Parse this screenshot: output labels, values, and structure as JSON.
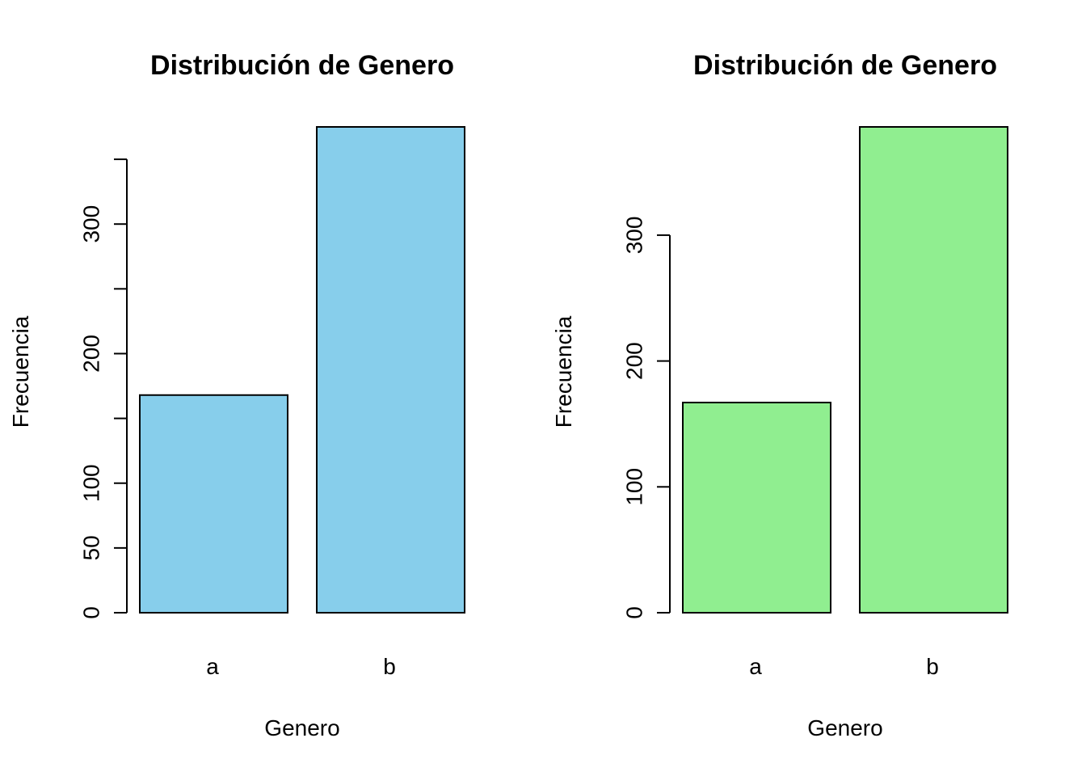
{
  "chart_data": [
    {
      "type": "bar",
      "title": "Distribución de Genero",
      "xlabel": "Genero",
      "ylabel": "Frecuencia",
      "categories": [
        "a",
        "b"
      ],
      "values": [
        168,
        375
      ],
      "ylim": [
        0,
        375
      ],
      "yticks": [
        0,
        50,
        100,
        150,
        200,
        250,
        300,
        350
      ],
      "ytick_labels": [
        "0",
        "50",
        "100",
        "",
        "200",
        "",
        "300",
        ""
      ],
      "bar_color": "#87CEEB",
      "grid": false,
      "legend": false
    },
    {
      "type": "bar",
      "title": "Distribución de Genero",
      "xlabel": "Genero",
      "ylabel": "Frecuencia",
      "categories": [
        "a",
        "b"
      ],
      "values": [
        167,
        386
      ],
      "ylim": [
        0,
        386
      ],
      "yticks": [
        0,
        100,
        200,
        300
      ],
      "ytick_labels": [
        "0",
        "100",
        "200",
        "300"
      ],
      "bar_color": "#90EE90",
      "grid": false,
      "legend": false
    }
  ]
}
